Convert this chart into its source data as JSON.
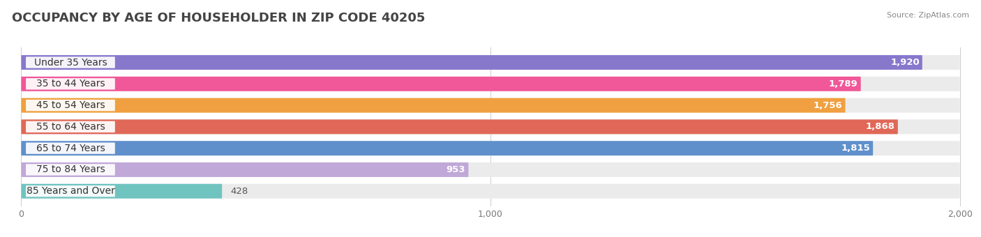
{
  "title": "OCCUPANCY BY AGE OF HOUSEHOLDER IN ZIP CODE 40205",
  "source": "Source: ZipAtlas.com",
  "categories": [
    "Under 35 Years",
    "35 to 44 Years",
    "45 to 54 Years",
    "55 to 64 Years",
    "65 to 74 Years",
    "75 to 84 Years",
    "85 Years and Over"
  ],
  "values": [
    1920,
    1789,
    1756,
    1868,
    1815,
    953,
    428
  ],
  "bar_colors": [
    "#8878cc",
    "#f05899",
    "#f0a040",
    "#e06858",
    "#6090cc",
    "#c0a8d8",
    "#70c4c0"
  ],
  "bar_bg_color": "#ebebeb",
  "xlim_min": 0,
  "xlim_max": 2000,
  "xticks": [
    0,
    1000,
    2000
  ],
  "xtick_labels": [
    "0",
    "1,000",
    "2,000"
  ],
  "title_fontsize": 13,
  "label_fontsize": 10,
  "value_fontsize": 9.5,
  "background_color": "#ffffff",
  "bar_height": 0.68,
  "label_bg_color": "#ffffff",
  "label_text_color": "#333333",
  "value_text_color_inside": "#ffffff",
  "value_text_color_outside": "#555555"
}
